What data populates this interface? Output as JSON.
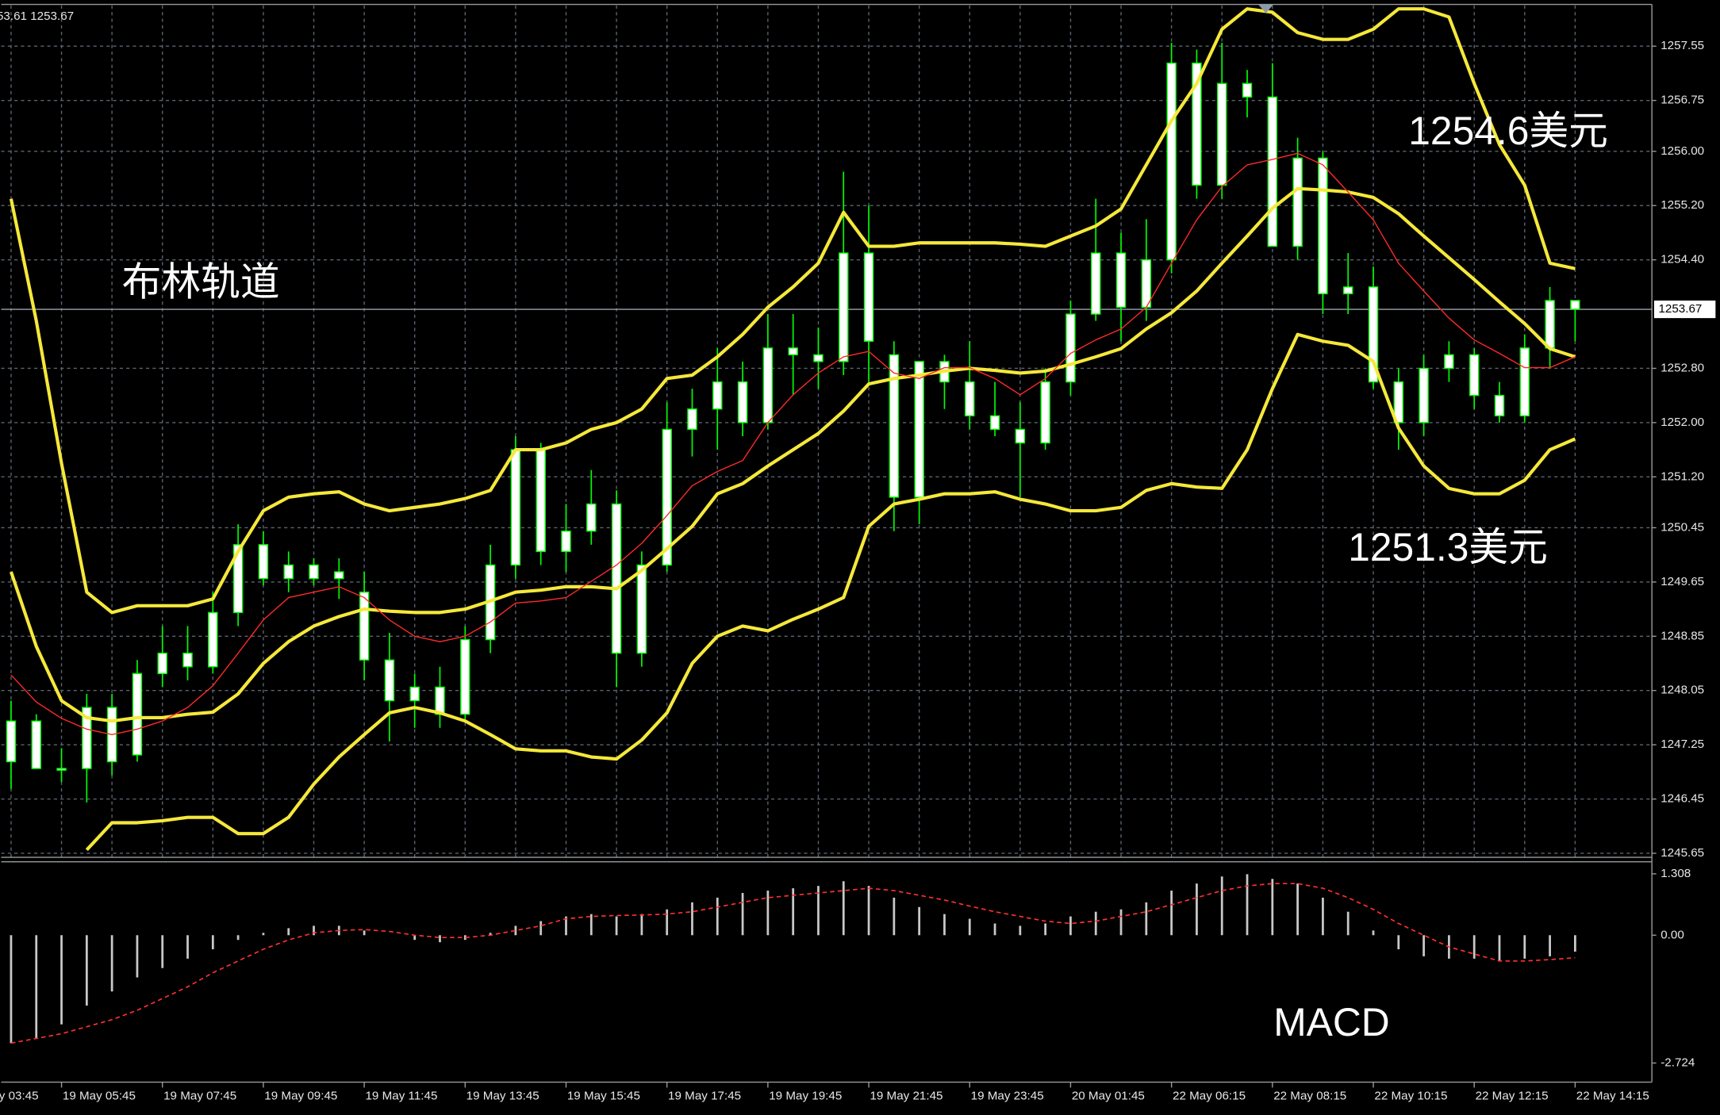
{
  "header_text": "53.61 1253.67",
  "chart_data": [
    {
      "type": "candlestick",
      "left_cut_label": "y 03:45",
      "categories": [
        null,
        null,
        "19 May 05:45",
        null,
        null,
        null,
        "19 May 07:45",
        null,
        null,
        null,
        "19 May 09:45",
        null,
        null,
        null,
        "19 May 11:45",
        null,
        null,
        null,
        "19 May 13:45",
        null,
        null,
        null,
        "19 May 15:45",
        null,
        null,
        null,
        "19 May 17:45",
        null,
        null,
        null,
        "19 May 19:45",
        null,
        null,
        null,
        "19 May 21:45",
        null,
        null,
        null,
        "19 May 23:45",
        null,
        null,
        null,
        "20 May 01:45",
        null,
        null,
        null,
        "22 May 06:15",
        null,
        null,
        null,
        "22 May 08:15",
        null,
        null,
        null,
        "22 May 10:15",
        null,
        null,
        null,
        "22 May 12:15",
        null,
        null,
        null,
        "22 May 14:15"
      ],
      "open": [
        1247.0,
        1247.6,
        1246.9,
        1246.9,
        1247.8,
        1247.1,
        1248.3,
        1248.6,
        1248.4,
        1249.2,
        1250.2,
        1249.7,
        1249.9,
        1249.7,
        1249.5,
        1248.5,
        1247.9,
        1248.1,
        1247.7,
        1248.8,
        1249.9,
        1251.6,
        1250.1,
        1250.4,
        1250.8,
        1248.6,
        1249.9,
        1251.9,
        1252.2,
        1252.6,
        1252.0,
        1253.1,
        1253.0,
        1252.9,
        1254.5,
        1253.0,
        1250.9,
        1252.9,
        1252.6,
        1252.1,
        1251.9,
        1251.7,
        1252.6,
        1253.6,
        1254.5,
        1253.7,
        1254.4,
        1257.3,
        1255.5,
        1257.0,
        1256.8,
        1254.6,
        1255.9,
        1253.9,
        1254.0,
        1252.6,
        1252.0,
        1252.8,
        1253.0,
        1252.4,
        1252.1,
        1253.1,
        1253.8
      ],
      "high": [
        1247.9,
        1247.7,
        1247.2,
        1248.0,
        1248.0,
        1248.5,
        1249.0,
        1249.0,
        1249.5,
        1250.5,
        1250.4,
        1250.1,
        1250.0,
        1250.0,
        1249.8,
        1248.9,
        1248.3,
        1248.4,
        1249.0,
        1250.2,
        1251.8,
        1251.7,
        1250.8,
        1251.3,
        1251.0,
        1250.1,
        1252.3,
        1252.5,
        1253.1,
        1252.9,
        1253.6,
        1253.6,
        1253.4,
        1255.7,
        1255.2,
        1253.2,
        1252.9,
        1253.0,
        1253.2,
        1252.6,
        1252.3,
        1252.8,
        1253.8,
        1255.3,
        1254.8,
        1255.0,
        1257.6,
        1257.5,
        1257.6,
        1257.2,
        1257.3,
        1256.2,
        1256.0,
        1254.5,
        1254.3,
        1252.8,
        1253.0,
        1253.2,
        1253.1,
        1252.6,
        1253.3,
        1254.0,
        1253.8
      ],
      "low": [
        1246.6,
        1246.9,
        1246.7,
        1246.4,
        1246.8,
        1247.0,
        1248.1,
        1248.2,
        1248.3,
        1249.0,
        1249.6,
        1249.5,
        1249.6,
        1249.4,
        1248.2,
        1247.3,
        1247.5,
        1247.5,
        1247.6,
        1248.6,
        1249.7,
        1249.9,
        1249.8,
        1250.2,
        1248.1,
        1248.4,
        1249.8,
        1251.5,
        1251.6,
        1251.8,
        1251.9,
        1252.4,
        1252.5,
        1252.7,
        1252.6,
        1250.4,
        1250.5,
        1252.2,
        1251.9,
        1251.8,
        1250.9,
        1251.6,
        1252.4,
        1253.5,
        1253.2,
        1253.5,
        1254.2,
        1255.3,
        1255.3,
        1256.5,
        1254.6,
        1254.4,
        1253.6,
        1253.6,
        1252.5,
        1251.6,
        1251.8,
        1252.6,
        1252.2,
        1252.0,
        1252.0,
        1252.8,
        1253.2
      ],
      "close": [
        1247.6,
        1246.9,
        1246.9,
        1247.8,
        1247.0,
        1248.3,
        1248.6,
        1248.4,
        1249.2,
        1250.2,
        1249.7,
        1249.9,
        1249.7,
        1249.8,
        1248.5,
        1247.9,
        1248.1,
        1247.7,
        1248.8,
        1249.9,
        1251.6,
        1250.1,
        1250.4,
        1250.8,
        1248.6,
        1249.9,
        1251.9,
        1252.2,
        1252.6,
        1252.0,
        1253.1,
        1253.0,
        1252.9,
        1254.5,
        1253.2,
        1250.9,
        1252.9,
        1252.6,
        1252.1,
        1251.9,
        1251.7,
        1252.6,
        1253.6,
        1254.5,
        1253.7,
        1254.4,
        1257.3,
        1255.5,
        1257.0,
        1256.8,
        1254.6,
        1255.9,
        1253.9,
        1254.0,
        1252.6,
        1252.0,
        1252.8,
        1253.0,
        1252.4,
        1252.1,
        1253.1,
        1253.8,
        1253.67
      ],
      "candle_color": "#00ff00",
      "body_color": "#ffffff",
      "series": [
        {
          "color": "#f5e83a",
          "width": 3,
          "values": [
            1255.3,
            1253.5,
            1251.4,
            1249.5,
            1249.2,
            1249.3,
            1249.3,
            1249.3,
            1249.4,
            1250.1,
            1250.7,
            1250.9,
            1250.95,
            1250.98,
            1250.8,
            1250.7,
            1250.75,
            1250.8,
            1250.88,
            1251.0,
            1251.6,
            1251.6,
            1251.7,
            1251.9,
            1252.0,
            1252.2,
            1252.65,
            1252.7,
            1252.97,
            1253.3,
            1253.7,
            1254.0,
            1254.35,
            1255.1,
            1254.6,
            1254.6,
            1254.65,
            1254.65,
            1254.65,
            1254.65,
            1254.63,
            1254.6,
            1254.75,
            1254.9,
            1255.15,
            1255.8,
            1256.45,
            1257.0,
            1257.8,
            1258.1,
            1258.05,
            1257.75,
            1257.65,
            1257.65,
            1257.8,
            1258.1,
            1258.1,
            1257.98,
            1257.0,
            1256.1,
            1255.5,
            1254.35,
            1254.27
          ]
        },
        {
          "color": "#f5e83a",
          "width": 3,
          "values": [
            1249.8,
            1248.7,
            1247.9,
            1247.65,
            1247.6,
            1247.65,
            1247.65,
            1247.7,
            1247.73,
            1248.0,
            1248.45,
            1248.77,
            1249.0,
            1249.14,
            1249.25,
            1249.22,
            1249.2,
            1249.2,
            1249.25,
            1249.37,
            1249.5,
            1249.53,
            1249.58,
            1249.58,
            1249.55,
            1249.82,
            1250.14,
            1250.47,
            1250.95,
            1251.1,
            1251.36,
            1251.6,
            1251.84,
            1252.17,
            1252.57,
            1252.65,
            1252.7,
            1252.76,
            1252.8,
            1252.77,
            1252.73,
            1252.76,
            1252.86,
            1252.97,
            1253.09,
            1253.38,
            1253.62,
            1253.94,
            1254.35,
            1254.75,
            1255.16,
            1255.45,
            1255.43,
            1255.4,
            1255.32,
            1255.08,
            1254.75,
            1254.43,
            1254.11,
            1253.78,
            1253.46,
            1253.09,
            1252.97
          ]
        },
        {
          "color": "#f5e83a",
          "width": 3,
          "values": [
            null,
            null,
            null,
            1245.7,
            1246.1,
            1246.1,
            1246.13,
            1246.18,
            1246.18,
            1245.94,
            1245.94,
            1246.18,
            1246.67,
            1247.07,
            1247.4,
            1247.72,
            1247.8,
            1247.72,
            1247.6,
            1247.4,
            1247.19,
            1247.16,
            1247.16,
            1247.07,
            1247.04,
            1247.32,
            1247.72,
            1248.45,
            1248.85,
            1249.0,
            1248.93,
            1249.1,
            1249.25,
            1249.42,
            1250.47,
            1250.8,
            1250.87,
            1250.95,
            1250.95,
            1250.98,
            1250.87,
            1250.8,
            1250.7,
            1250.7,
            1250.75,
            1251.0,
            1251.1,
            1251.05,
            1251.03,
            1251.6,
            1252.5,
            1253.3,
            1253.2,
            1253.14,
            1252.9,
            1251.92,
            1251.36,
            1251.03,
            1250.95,
            1250.95,
            1251.15,
            1251.6,
            1251.76
          ]
        },
        {
          "color": "#ff2a2a",
          "width": 1,
          "values": [
            1248.28,
            1247.88,
            1247.64,
            1247.48,
            1247.4,
            1247.48,
            1247.6,
            1247.8,
            1248.12,
            1248.6,
            1249.09,
            1249.42,
            1249.5,
            1249.58,
            1249.42,
            1249.09,
            1248.85,
            1248.77,
            1248.85,
            1249.06,
            1249.34,
            1249.37,
            1249.42,
            1249.66,
            1249.9,
            1250.22,
            1250.63,
            1251.07,
            1251.28,
            1251.44,
            1252.0,
            1252.41,
            1252.73,
            1252.97,
            1253.05,
            1252.73,
            1252.65,
            1252.81,
            1252.81,
            1252.65,
            1252.41,
            1252.65,
            1253.02,
            1253.22,
            1253.38,
            1253.7,
            1254.35,
            1254.99,
            1255.48,
            1255.8,
            1255.88,
            1255.97,
            1255.8,
            1255.4,
            1254.99,
            1254.35,
            1253.94,
            1253.54,
            1253.22,
            1253.02,
            1252.81,
            1252.81,
            1252.97
          ]
        }
      ],
      "ylim": [
        1245.59,
        1258.15
      ],
      "yticks": [
        1257.55,
        1256.75,
        {
          "value": 1256,
          "label": "1256.00"
        },
        {
          "value": 1255.2,
          "label": "1255.20"
        },
        {
          "value": 1254.4,
          "label": "1254.40"
        },
        {
          "value": 1252.8,
          "label": "1252.80"
        },
        {
          "value": 1252,
          "label": "1252.00"
        },
        {
          "value": 1251.2,
          "label": "1251.20"
        },
        1250.45,
        1249.65,
        1248.85,
        1248.05,
        1247.25,
        1246.45,
        1245.65
      ],
      "current_price": 1253.67,
      "grid": true,
      "annotations": [
        "布林轨道",
        "1254.6美元",
        "1251.3美元"
      ]
    },
    {
      "type": "macd",
      "values": [
        -2.3,
        -2.2,
        -1.9,
        -1.5,
        -1.2,
        -0.9,
        -0.7,
        -0.5,
        -0.3,
        -0.1,
        0.05,
        0.15,
        0.2,
        0.2,
        0.1,
        0.0,
        -0.1,
        -0.15,
        -0.1,
        0.05,
        0.2,
        0.3,
        0.4,
        0.45,
        0.4,
        0.45,
        0.55,
        0.7,
        0.8,
        0.9,
        0.95,
        1.0,
        1.05,
        1.15,
        1.05,
        0.8,
        0.6,
        0.45,
        0.35,
        0.25,
        0.2,
        0.25,
        0.4,
        0.5,
        0.55,
        0.7,
        0.95,
        1.1,
        1.25,
        1.3,
        1.2,
        1.1,
        0.8,
        0.5,
        0.1,
        -0.3,
        -0.45,
        -0.5,
        -0.5,
        -0.55,
        -0.5,
        -0.45,
        -0.35
      ],
      "color": "#c8c8c8",
      "series": [
        {
          "color": "#ff3030",
          "values": [
            -2.3,
            -2.2,
            -2.1,
            -1.95,
            -1.8,
            -1.6,
            -1.35,
            -1.1,
            -0.8,
            -0.55,
            -0.3,
            -0.1,
            0.05,
            0.1,
            0.12,
            0.08,
            0.0,
            -0.05,
            -0.05,
            0.0,
            0.1,
            0.2,
            0.35,
            0.4,
            0.42,
            0.43,
            0.45,
            0.5,
            0.6,
            0.7,
            0.8,
            0.85,
            0.9,
            0.95,
            1.0,
            0.95,
            0.85,
            0.75,
            0.62,
            0.5,
            0.4,
            0.3,
            0.25,
            0.3,
            0.4,
            0.5,
            0.65,
            0.8,
            0.95,
            1.05,
            1.1,
            1.1,
            1.0,
            0.8,
            0.55,
            0.25,
            0.0,
            -0.25,
            -0.4,
            -0.55,
            -0.55,
            -0.52,
            -0.48
          ]
        }
      ],
      "ylim": [
        -3.084,
        1.542
      ],
      "yticks": [
        1.308,
        {
          "value": 0,
          "label": "0.00"
        },
        -2.724
      ],
      "annotations": [
        "MACD"
      ]
    }
  ]
}
